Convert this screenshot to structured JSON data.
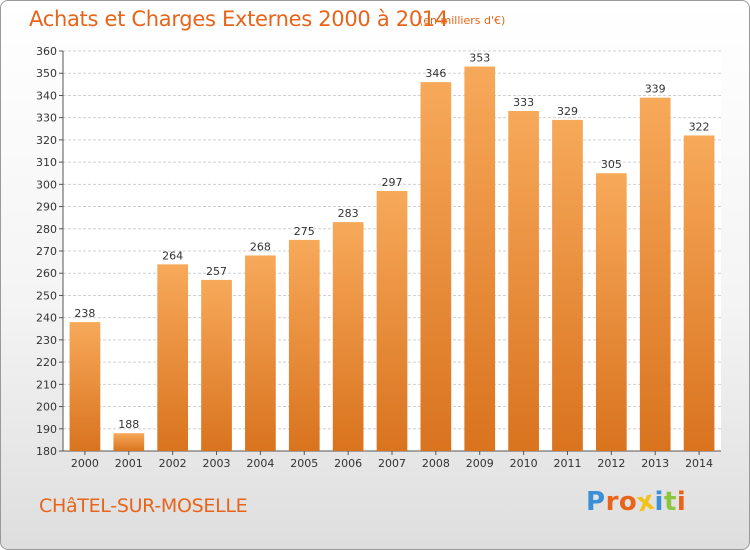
{
  "header": {
    "title": "Achats et Charges Externes 2000 à 2014",
    "unit": "(en milliers d'€)"
  },
  "footer": {
    "commune": "CHâTEL-SUR-MOSELLE",
    "logo_letters": [
      "P",
      "r",
      "o",
      "x",
      "i",
      "t",
      "i"
    ],
    "logo_colors": [
      "#3a8fd6",
      "#e8641a",
      "#e8641a",
      "#f2c21b",
      "#3a8fd6",
      "#8cc63f",
      "#e8641a"
    ]
  },
  "chart_data": {
    "type": "bar",
    "title": "Achats et Charges Externes 2000 à 2014",
    "categories": [
      "2000",
      "2001",
      "2002",
      "2003",
      "2004",
      "2005",
      "2006",
      "2007",
      "2008",
      "2009",
      "2010",
      "2011",
      "2012",
      "2013",
      "2014"
    ],
    "values": [
      238,
      188,
      264,
      257,
      268,
      275,
      283,
      297,
      346,
      353,
      333,
      329,
      305,
      339,
      322
    ],
    "ylim": [
      180,
      360
    ],
    "yticks": [
      180,
      190,
      200,
      210,
      220,
      230,
      240,
      250,
      260,
      270,
      280,
      290,
      300,
      310,
      320,
      330,
      340,
      350,
      360
    ],
    "grid": true,
    "bar_color_top": "#f7a95a",
    "bar_color_bottom": "#d9731e"
  }
}
